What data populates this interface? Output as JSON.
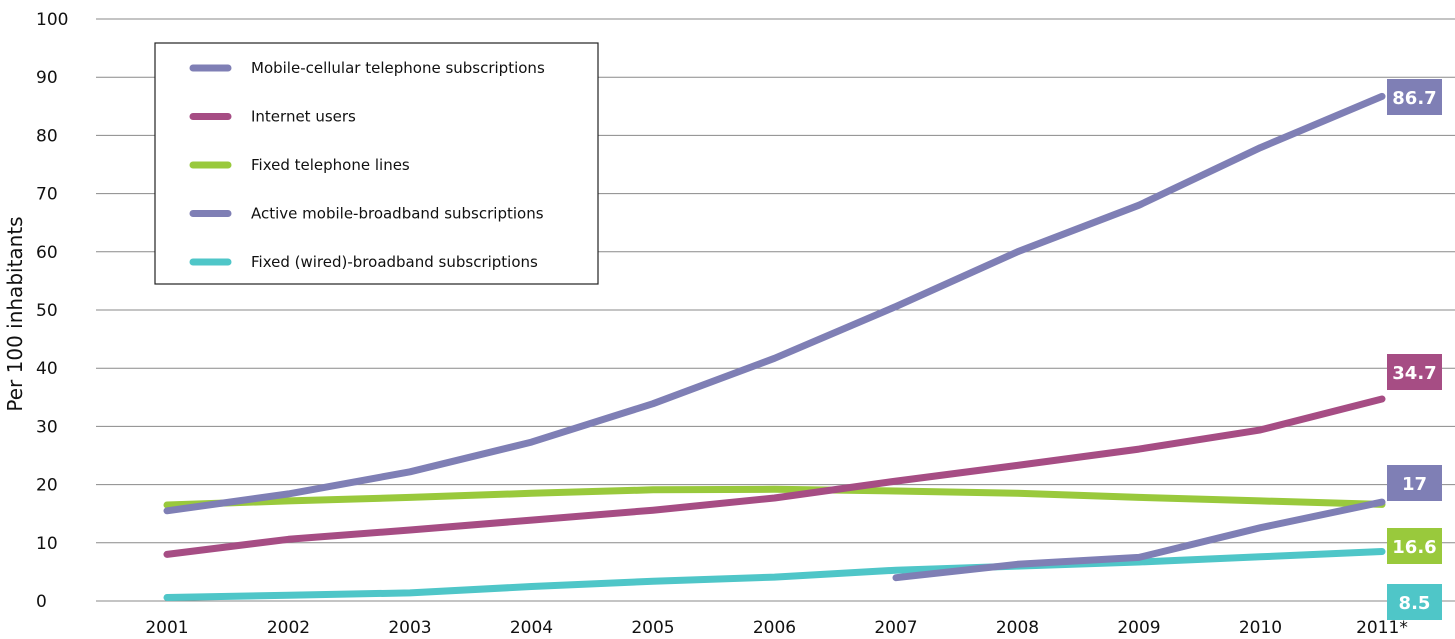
{
  "chart_data": {
    "type": "line",
    "ylabel": "Per 100 inhabitants",
    "xlabel": "",
    "ylim": [
      0,
      100
    ],
    "yticks": [
      "0",
      "10",
      "20",
      "30",
      "40",
      "50",
      "60",
      "70",
      "80",
      "90",
      "100"
    ],
    "categories": [
      "2001",
      "2002",
      "2003",
      "2004",
      "2005",
      "2006",
      "2007",
      "2008",
      "2009",
      "2010",
      "2011*"
    ],
    "grid": "horizontal",
    "legend_position": "top-left",
    "series": [
      {
        "name": "Mobile-cellular telephone subscriptions",
        "color": "#7F7FB5",
        "values": [
          15.5,
          18.4,
          22.2,
          27.3,
          33.9,
          41.7,
          50.6,
          60.0,
          68.0,
          77.9,
          86.7
        ],
        "end_label": "86.7"
      },
      {
        "name": "Internet users",
        "color": "#A64D84",
        "values": [
          8.0,
          10.6,
          12.2,
          13.9,
          15.6,
          17.7,
          20.6,
          23.3,
          26.1,
          29.4,
          34.7
        ],
        "end_label": "34.7"
      },
      {
        "name": "Fixed telephone lines",
        "color": "#99C93C",
        "values": [
          16.5,
          17.2,
          17.8,
          18.5,
          19.1,
          19.2,
          18.9,
          18.5,
          17.8,
          17.2,
          16.6
        ],
        "end_label": "16.6"
      },
      {
        "name": "Active mobile-broadband subscriptions",
        "color": "#7F7FB5",
        "values": [
          null,
          null,
          null,
          null,
          null,
          null,
          4.0,
          6.3,
          7.5,
          12.6,
          17.0
        ],
        "end_label": "17"
      },
      {
        "name": "Fixed (wired)-broadband subscriptions",
        "color": "#4FC6C8",
        "values": [
          0.6,
          1.0,
          1.4,
          2.5,
          3.4,
          4.1,
          5.3,
          6.0,
          6.7,
          7.6,
          8.5
        ],
        "end_label": "8.5"
      }
    ]
  }
}
